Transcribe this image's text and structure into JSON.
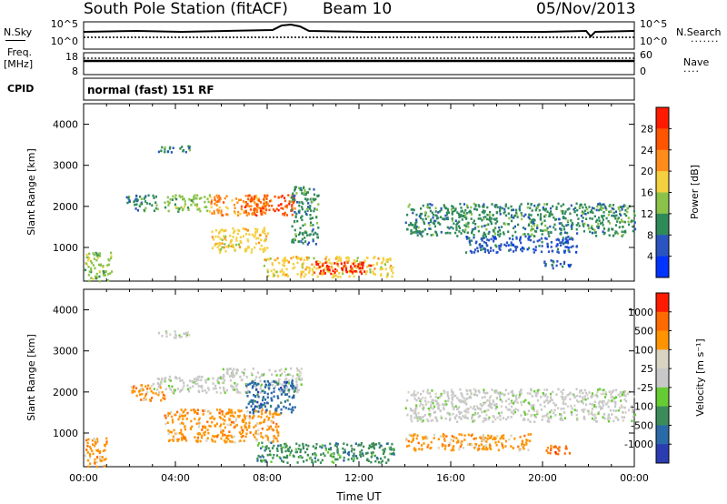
{
  "header": {
    "station": "South Pole Station (fitACF)",
    "beam": "Beam 10",
    "date": "05/Nov/2013"
  },
  "status_panels": {
    "nsky_label": "N.Sky",
    "nsky_ticks": [
      "10^5",
      "10^0"
    ],
    "nsearch_label": "N.Search",
    "nsearch_ticks": [
      "10^5",
      "10^0"
    ],
    "freq_label_1": "Freq.",
    "freq_label_2": "[MHz]",
    "freq_ticks": [
      "18",
      "8"
    ],
    "nave_label": "Nave",
    "nave_ticks": [
      "60",
      "0"
    ],
    "cpid_label": "CPID",
    "cpid_text": "normal (fast) 151 RF"
  },
  "chart_data": [
    {
      "type": "heatmap",
      "name": "power",
      "ylabel": "Slant Range [km]",
      "yticks": [
        "4000",
        "3000",
        "2000",
        "1000"
      ],
      "ylim": [
        180,
        4500
      ],
      "xlim": [
        0,
        24
      ],
      "colorbar_label": "Power [dB]",
      "colorbar_ticks": [
        "28",
        "24",
        "20",
        "16",
        "12",
        "8",
        "4"
      ],
      "colorbar_colors": [
        "#0033ff",
        "#2a55c0",
        "#2f8a5a",
        "#8bc34a",
        "#f4d03f",
        "#ff8c1a",
        "#ff5500",
        "#ff1a00"
      ],
      "bands": [
        {
          "t0": 0.0,
          "t1": 1.2,
          "r0": 200,
          "r1": 900,
          "level": 3
        },
        {
          "t0": 1.8,
          "t1": 3.2,
          "r0": 1900,
          "r1": 2300,
          "level": 2
        },
        {
          "t0": 3.5,
          "t1": 5.5,
          "r0": 1900,
          "r1": 2300,
          "level": 3
        },
        {
          "t0": 5.5,
          "t1": 8.0,
          "r0": 1800,
          "r1": 2300,
          "level": 5
        },
        {
          "t0": 7.0,
          "t1": 9.2,
          "r0": 1800,
          "r1": 2300,
          "level": 6
        },
        {
          "t0": 5.5,
          "t1": 8.0,
          "r0": 900,
          "r1": 1500,
          "level": 4
        },
        {
          "t0": 9.0,
          "t1": 10.2,
          "r0": 1100,
          "r1": 2500,
          "level": 2
        },
        {
          "t0": 7.8,
          "t1": 13.5,
          "r0": 300,
          "r1": 800,
          "level": 4
        },
        {
          "t0": 10.0,
          "t1": 12.5,
          "r0": 380,
          "r1": 680,
          "level": 7
        },
        {
          "t0": 3.2,
          "t1": 4.6,
          "r0": 3300,
          "r1": 3500,
          "level": 2
        },
        {
          "t0": 14.0,
          "t1": 24.0,
          "r0": 1300,
          "r1": 2100,
          "level": 2
        },
        {
          "t0": 20.0,
          "t1": 21.2,
          "r0": 500,
          "r1": 720,
          "level": 1
        },
        {
          "t0": 16.5,
          "t1": 21.5,
          "r0": 900,
          "r1": 1300,
          "level": 1
        }
      ]
    },
    {
      "type": "heatmap",
      "name": "velocity",
      "ylabel": "Slant Range [km]",
      "yticks": [
        "4000",
        "3000",
        "2000",
        "1000"
      ],
      "ylim": [
        180,
        4500
      ],
      "xlim": [
        0,
        24
      ],
      "xlabel": "Time UT",
      "xticks": [
        "00:00",
        "04:00",
        "08:00",
        "12:00",
        "16:00",
        "20:00",
        "00:00"
      ],
      "colorbar_label": "Velocity [m s⁻¹]",
      "colorbar_ticks": [
        "1000",
        "500",
        "100",
        "25",
        "-25",
        "-100",
        "-500",
        "-1000"
      ],
      "colorbar_colors": [
        "#2a3cb0",
        "#2a6aa8",
        "#3c8c5a",
        "#66cc33",
        "#c8c8c8",
        "#d8d4c4",
        "#ff9400",
        "#ff6a00",
        "#ff1a00"
      ],
      "bands": [
        {
          "t0": 0.0,
          "t1": 1.0,
          "r0": 200,
          "r1": 900,
          "level": 6
        },
        {
          "t0": 2.0,
          "t1": 3.5,
          "r0": 1800,
          "r1": 2200,
          "level": 6
        },
        {
          "t0": 3.0,
          "t1": 6.0,
          "r0": 2000,
          "r1": 2400,
          "level": 4
        },
        {
          "t0": 6.0,
          "t1": 9.5,
          "r0": 2000,
          "r1": 2600,
          "level": 4
        },
        {
          "t0": 7.0,
          "t1": 9.2,
          "r0": 1500,
          "r1": 2300,
          "level": 1
        },
        {
          "t0": 3.5,
          "t1": 8.5,
          "r0": 800,
          "r1": 1600,
          "level": 6
        },
        {
          "t0": 7.5,
          "t1": 13.5,
          "r0": 300,
          "r1": 800,
          "level": 2
        },
        {
          "t0": 3.2,
          "t1": 4.6,
          "r0": 3300,
          "r1": 3500,
          "level": 4
        },
        {
          "t0": 14.0,
          "t1": 24.0,
          "r0": 1300,
          "r1": 2100,
          "level": 4
        },
        {
          "t0": 14.0,
          "t1": 19.5,
          "r0": 600,
          "r1": 1000,
          "level": 6
        },
        {
          "t0": 20.0,
          "t1": 21.2,
          "r0": 500,
          "r1": 720,
          "level": 7
        }
      ]
    }
  ]
}
